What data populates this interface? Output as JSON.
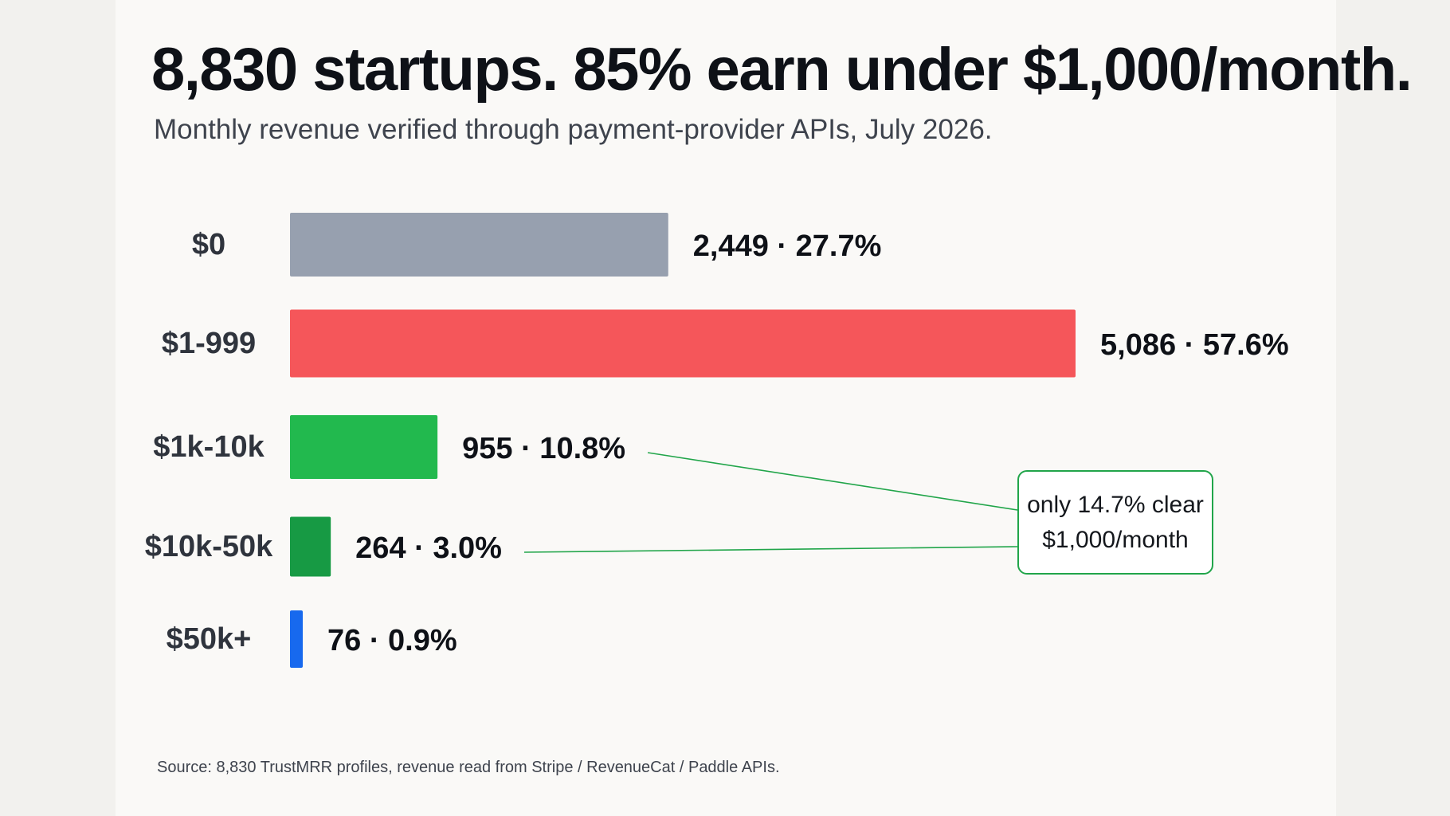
{
  "title": "8,830 startups. 85% earn under $1,000/month.",
  "subtitle": "Monthly revenue verified through payment-provider APIs, July 2026.",
  "source": "Source: 8,830 TrustMRR profiles, revenue read from Stripe / RevenueCat / Paddle APIs.",
  "callout": {
    "text": "only 14.7% clear $1,000/month",
    "border_color": "#21a54a"
  },
  "chart_data": {
    "type": "bar",
    "orientation": "horizontal",
    "categories": [
      "$0",
      "$1-999",
      "$1k-10k",
      "$10k-50k",
      "$50k+"
    ],
    "values": [
      2449,
      5086,
      955,
      264,
      76
    ],
    "data_labels": [
      "2,449 · 27.7%",
      "5,086 · 57.6%",
      "955 · 10.8%",
      "264 · 3.0%",
      "76 · 0.9%"
    ],
    "colors": [
      "#97a0af",
      "#f5565a",
      "#22b94e",
      "#179a44",
      "#1769ee"
    ],
    "xlim": [
      0,
      5086
    ],
    "grid": false,
    "legend": "none"
  }
}
